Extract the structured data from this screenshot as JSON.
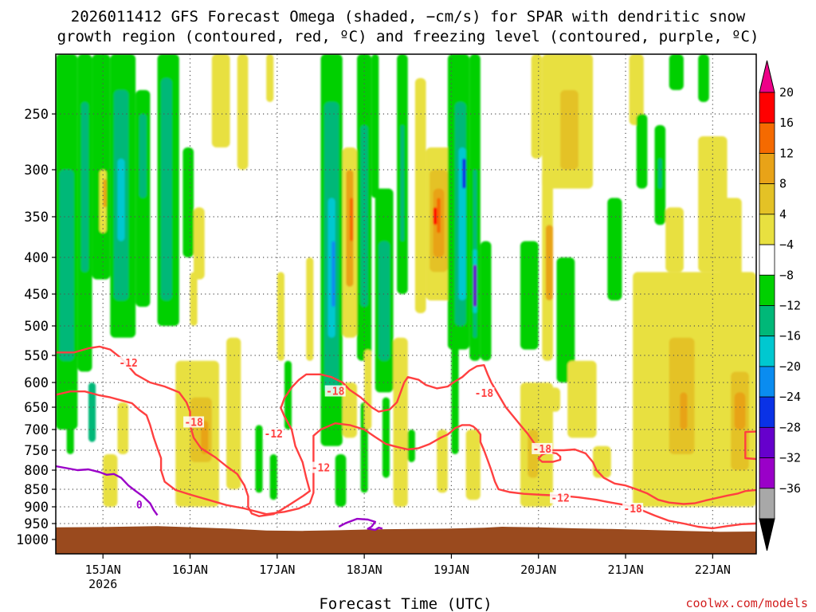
{
  "chart_data": {
    "type": "time-height",
    "title_line1": "2026011412 GFS Forecast Omega (shaded, −cm/s) for SPAR with dendritic snow",
    "title_line2": "growth region (contoured, red, ºC) and freezing level (contoured, purple, ºC)",
    "xlabel": "Forecast Time (UTC)",
    "credit": "coolwx.com/models",
    "x_range_hours": [
      -13,
      180
    ],
    "x_ticks": [
      {
        "hour": 0,
        "label": "15JAN",
        "sub": "2026"
      },
      {
        "hour": 24,
        "label": "16JAN",
        "sub": ""
      },
      {
        "hour": 48,
        "label": "17JAN",
        "sub": ""
      },
      {
        "hour": 72,
        "label": "18JAN",
        "sub": ""
      },
      {
        "hour": 96,
        "label": "19JAN",
        "sub": ""
      },
      {
        "hour": 120,
        "label": "20JAN",
        "sub": ""
      },
      {
        "hour": 144,
        "label": "21JAN",
        "sub": ""
      },
      {
        "hour": 168,
        "label": "22JAN",
        "sub": ""
      }
    ],
    "y_ticks": [
      {
        "p": 250,
        "label": "250"
      },
      {
        "p": 300,
        "label": "300"
      },
      {
        "p": 350,
        "label": "350"
      },
      {
        "p": 400,
        "label": "400"
      },
      {
        "p": 450,
        "label": "450"
      },
      {
        "p": 500,
        "label": "500"
      },
      {
        "p": 550,
        "label": "550"
      },
      {
        "p": 600,
        "label": "600"
      },
      {
        "p": 650,
        "label": "650"
      },
      {
        "p": 700,
        "label": "700"
      },
      {
        "p": 750,
        "label": "750"
      },
      {
        "p": 800,
        "label": "800"
      },
      {
        "p": 850,
        "label": "850"
      },
      {
        "p": 900,
        "label": "900"
      },
      {
        "p": 950,
        "label": "950"
      },
      {
        "p": 1000,
        "label": "1000"
      }
    ],
    "colorbar": {
      "labels": [
        "20",
        "16",
        "12",
        "8",
        "4",
        "−4",
        "−8",
        "−12",
        "−16",
        "−20",
        "−24",
        "−28",
        "−32",
        "−36"
      ],
      "colors": [
        "#ff0000",
        "#f56a00",
        "#e8a318",
        "#e4c226",
        "#e8e040",
        "#ffffff",
        "#00d000",
        "#00b878",
        "#00c8d0",
        "#0a8cf0",
        "#0a32e6",
        "#6600cc",
        "#9a00c8",
        "#a8a8a8"
      ],
      "top_tip": "#ee0088",
      "bottom_tip": "#000000"
    },
    "dgz_contours": {
      "color": "#ff4040",
      "lines": [
        {
          "level": "-18",
          "points": [
            [
              -13,
              545
            ],
            [
              -8,
              545
            ],
            [
              -4,
              538
            ],
            [
              -1,
              535
            ],
            [
              2,
              540
            ],
            [
              5,
              555
            ],
            [
              7,
              570
            ],
            [
              9,
              585
            ],
            [
              13,
              600
            ],
            [
              17,
              608
            ],
            [
              21,
              620
            ],
            [
              23,
              640
            ],
            [
              24,
              660
            ],
            [
              24,
              690
            ],
            [
              25,
              720
            ],
            [
              27,
              745
            ],
            [
              31,
              768
            ],
            [
              34,
              790
            ],
            [
              37,
              810
            ],
            [
              39,
              840
            ],
            [
              40,
              870
            ],
            [
              40,
              900
            ],
            [
              41,
              920
            ],
            [
              43,
              928
            ],
            [
              47,
              922
            ],
            [
              49,
              910
            ],
            [
              52,
              890
            ],
            [
              55,
              870
            ],
            [
              57,
              855
            ],
            [
              56,
              820
            ],
            [
              55,
              780
            ],
            [
              53,
              740
            ],
            [
              52,
              700
            ],
            [
              50,
              670
            ],
            [
              49,
              652
            ],
            [
              50,
              632
            ],
            [
              52,
              610
            ],
            [
              54,
              595
            ],
            [
              56,
              585
            ],
            [
              60,
              585
            ],
            [
              63,
              590
            ],
            [
              66,
              600
            ],
            [
              68,
              615
            ],
            [
              71,
              630
            ],
            [
              74,
              650
            ],
            [
              76,
              660
            ],
            [
              79,
              655
            ],
            [
              81,
              640
            ],
            [
              82,
              620
            ],
            [
              83,
              600
            ],
            [
              84,
              590
            ],
            [
              87,
              595
            ],
            [
              89,
              605
            ],
            [
              92,
              612
            ],
            [
              95,
              608
            ],
            [
              97,
              598
            ],
            [
              99,
              590
            ],
            [
              101,
              578
            ],
            [
              103,
              570
            ],
            [
              105,
              568
            ],
            [
              106,
              585
            ],
            [
              107,
              600
            ],
            [
              109,
              625
            ],
            [
              111,
              650
            ],
            [
              113,
              670
            ],
            [
              115,
              690
            ],
            [
              117,
              710
            ],
            [
              119,
              735
            ],
            [
              121,
              745
            ],
            [
              124,
              750
            ],
            [
              127,
              750
            ],
            [
              130,
              748
            ],
            [
              133,
              758
            ],
            [
              135,
              780
            ],
            [
              136,
              800
            ],
            [
              138,
              820
            ],
            [
              141,
              835
            ],
            [
              144,
              840
            ],
            [
              147,
              850
            ],
            [
              150,
              862
            ],
            [
              153,
              880
            ],
            [
              156,
              888
            ],
            [
              160,
              892
            ],
            [
              163,
              890
            ],
            [
              166,
              882
            ],
            [
              169,
              875
            ],
            [
              172,
              868
            ],
            [
              175,
              862
            ],
            [
              177,
              855
            ],
            [
              180,
              852
            ]
          ]
        },
        {
          "level": "-12",
          "points": [
            [
              -13,
              625
            ],
            [
              -9,
              618
            ],
            [
              -5,
              618
            ],
            [
              -1,
              626
            ],
            [
              2,
              630
            ],
            [
              5,
              636
            ],
            [
              8,
              642
            ],
            [
              10,
              656
            ],
            [
              12,
              668
            ],
            [
              13,
              690
            ],
            [
              14,
              720
            ],
            [
              15,
              745
            ],
            [
              16,
              770
            ],
            [
              16,
              800
            ],
            [
              17,
              830
            ],
            [
              20,
              852
            ],
            [
              24,
              865
            ],
            [
              29,
              880
            ],
            [
              34,
              895
            ],
            [
              39,
              905
            ],
            [
              45,
              922
            ],
            [
              50,
              915
            ],
            [
              54,
              905
            ],
            [
              57,
              890
            ],
            [
              58,
              860
            ],
            [
              58,
              830
            ],
            [
              58,
              800
            ],
            [
              58,
              770
            ],
            [
              58,
              740
            ],
            [
              58,
              715
            ],
            [
              60,
              700
            ],
            [
              64,
              686
            ],
            [
              68,
              690
            ],
            [
              72,
              700
            ],
            [
              75,
              718
            ],
            [
              78,
              735
            ],
            [
              81,
              742
            ],
            [
              84,
              748
            ],
            [
              87,
              745
            ],
            [
              90,
              735
            ],
            [
              93,
              720
            ],
            [
              95,
              712
            ],
            [
              96,
              705
            ],
            [
              97,
              697
            ],
            [
              99,
              690
            ],
            [
              101,
              690
            ],
            [
              102,
              693
            ],
            [
              103,
              700
            ],
            [
              104,
              712
            ],
            [
              104,
              730
            ],
            [
              105,
              750
            ],
            [
              106,
              775
            ],
            [
              107,
              800
            ],
            [
              108,
              830
            ],
            [
              109,
              850
            ],
            [
              112,
              858
            ],
            [
              116,
              863
            ],
            [
              121,
              866
            ],
            [
              126,
              868
            ],
            [
              131,
              873
            ],
            [
              136,
              880
            ],
            [
              140,
              888
            ],
            [
              144,
              895
            ],
            [
              148,
              908
            ],
            [
              152,
              926
            ],
            [
              156,
              942
            ],
            [
              160,
              950
            ],
            [
              164,
              960
            ],
            [
              168,
              965
            ],
            [
              172,
              958
            ],
            [
              176,
              952
            ],
            [
              180,
              950
            ]
          ]
        },
        {
          "level": "",
          "points": [
            [
              123,
              755
            ],
            [
              125,
              758
            ],
            [
              126,
              766
            ],
            [
              126,
              774
            ],
            [
              124,
              779
            ],
            [
              121,
              779
            ],
            [
              120,
              771
            ],
            [
              121,
              761
            ],
            [
              123,
              755
            ]
          ]
        },
        {
          "level": "",
          "points": [
            [
              180,
              705
            ],
            [
              177,
              706
            ],
            [
              177,
              740
            ],
            [
              177,
              770
            ],
            [
              180,
              772
            ]
          ]
        }
      ],
      "labels": [
        {
          "text": "-18",
          "at": [
            25,
            683
          ]
        },
        {
          "text": "-18",
          "at": [
            64,
            617
          ]
        },
        {
          "text": "-18",
          "at": [
            105,
            621
          ]
        },
        {
          "text": "-18",
          "at": [
            121,
            746
          ]
        },
        {
          "text": "-18",
          "at": [
            146,
            905
          ]
        },
        {
          "text": "-12",
          "at": [
            7,
            563
          ]
        },
        {
          "text": "-12",
          "at": [
            47,
            710
          ]
        },
        {
          "text": "-12",
          "at": [
            60,
            793
          ]
        },
        {
          "text": "-12",
          "at": [
            126,
            874
          ]
        }
      ]
    },
    "freezing_level": {
      "color": "#9a00c8",
      "lines": [
        {
          "points": [
            [
              -13,
              790
            ],
            [
              -10,
              795
            ],
            [
              -7,
              800
            ],
            [
              -4,
              798
            ],
            [
              -1,
              805
            ],
            [
              1,
              812
            ],
            [
              3,
              810
            ],
            [
              5,
              820
            ],
            [
              7,
              840
            ],
            [
              9,
              855
            ],
            [
              11,
              870
            ],
            [
              13,
              890
            ],
            [
              14,
              910
            ],
            [
              15,
              925
            ]
          ]
        },
        {
          "points": [
            [
              65,
              960
            ],
            [
              67,
              948
            ],
            [
              70,
              936
            ],
            [
              73,
              938
            ],
            [
              75,
              945
            ],
            [
              74,
              960
            ],
            [
              73,
              966
            ],
            [
              75,
              970
            ],
            [
              76,
              963
            ],
            [
              77,
              966
            ]
          ]
        }
      ],
      "labels": [
        {
          "text": "0",
          "at": [
            10,
            893
          ]
        }
      ]
    },
    "ground": {
      "color": "#9a4a1e",
      "profile": [
        [
          -13,
          962
        ],
        [
          0,
          961
        ],
        [
          15,
          958
        ],
        [
          25,
          962
        ],
        [
          35,
          966
        ],
        [
          45,
          972
        ],
        [
          55,
          973
        ],
        [
          65,
          971
        ],
        [
          75,
          968
        ],
        [
          85,
          967
        ],
        [
          95,
          966
        ],
        [
          105,
          963
        ],
        [
          110,
          960
        ],
        [
          120,
          962
        ],
        [
          130,
          965
        ],
        [
          140,
          967
        ],
        [
          150,
          970
        ],
        [
          160,
          973
        ],
        [
          170,
          976
        ],
        [
          180,
          975
        ]
      ]
    }
  }
}
